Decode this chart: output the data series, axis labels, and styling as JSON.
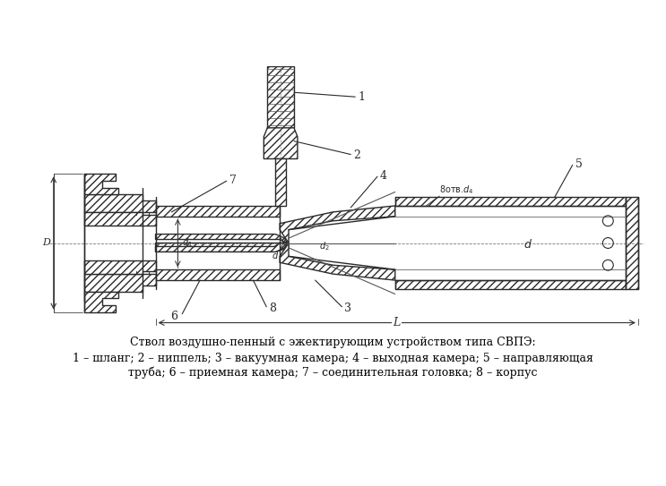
{
  "title_line1": "Ствол воздушно-пенный с эжектирующим устройством типа СВПЭ:",
  "title_line2": "1 – шланг; 2 – ниппель; 3 – вакуумная камера; 4 – выходная камера; 5 – направляющая",
  "title_line3": "труба; 6 – приемная камера; 7 – соединительная головка; 8 – корпус",
  "bg_color": "#ffffff",
  "line_color": "#2a2a2a",
  "figsize": [
    7.43,
    5.43
  ],
  "dpi": 100,
  "hatch": "////"
}
